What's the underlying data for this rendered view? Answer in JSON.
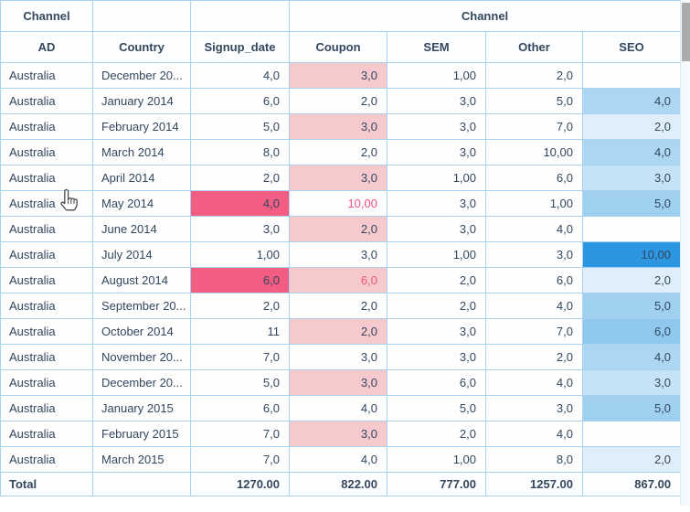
{
  "table": {
    "header_row1": [
      {
        "label": "Channel",
        "span": 1
      },
      {
        "label": "",
        "span": 1
      },
      {
        "label": "",
        "span": 1
      },
      {
        "label": "Channel",
        "span": 4
      }
    ],
    "columns": [
      "AD",
      "Country",
      "Signup_date",
      "Coupon",
      "SEM",
      "Other",
      "SEO"
    ],
    "rows": [
      {
        "ad": "Australia",
        "country": "December 20...",
        "signup": "4,0",
        "coupon": "3,0",
        "coupon_bg": "#F6C9CD",
        "sem": "1,00",
        "other": "2,0",
        "seo": ""
      },
      {
        "ad": "Australia",
        "country": "January 2014",
        "signup": "6,0",
        "coupon": "2,0",
        "sem": "3,0",
        "other": "5,0",
        "seo": "4,0",
        "seo_bg": "#ACD6F2"
      },
      {
        "ad": "Australia",
        "country": "February 2014",
        "signup": "5,0",
        "coupon": "3,0",
        "coupon_bg": "#F6C9CD",
        "sem": "3,0",
        "other": "7,0",
        "seo": "2,0",
        "seo_bg": "#DFEFFA"
      },
      {
        "ad": "Australia",
        "country": "March 2014",
        "signup": "8,0",
        "coupon": "2,0",
        "sem": "3,0",
        "other": "10,00",
        "seo": "4,0",
        "seo_bg": "#ACD6F2"
      },
      {
        "ad": "Australia",
        "country": "April 2014",
        "signup": "2,0",
        "coupon": "3,0",
        "coupon_bg": "#F6C9CD",
        "sem": "1,00",
        "other": "6,0",
        "seo": "3,0",
        "seo_bg": "#C6E2F7"
      },
      {
        "ad": "Australia",
        "country": "May 2014",
        "signup": "4,0",
        "signup_bg": "#F35C83",
        "coupon": "10,00",
        "coupon_color": "#F3527F",
        "sem": "3,0",
        "other": "1,00",
        "seo": "5,0",
        "seo_bg": "#A0D0F0"
      },
      {
        "ad": "Australia",
        "country": "June 2014",
        "signup": "3,0",
        "coupon": "2,0",
        "coupon_bg": "#F6C9CD",
        "sem": "3,0",
        "other": "4,0",
        "seo": ""
      },
      {
        "ad": "Australia",
        "country": "July 2014",
        "signup": "1,00",
        "coupon": "3,0",
        "sem": "1,00",
        "other": "3,0",
        "seo": "10,00",
        "seo_bg": "#2D96E0"
      },
      {
        "ad": "Australia",
        "country": "August 2014",
        "signup": "6,0",
        "signup_bg": "#F35C83",
        "coupon": "6,0",
        "coupon_bg": "#F6C9CD",
        "coupon_color": "#F3527F",
        "sem": "2,0",
        "other": "6,0",
        "seo": "2,0",
        "seo_bg": "#DFEFFA"
      },
      {
        "ad": "Australia",
        "country": "September 20...",
        "signup": "2,0",
        "coupon": "2,0",
        "sem": "2,0",
        "other": "4,0",
        "seo": "5,0",
        "seo_bg": "#A0D0F0"
      },
      {
        "ad": "Australia",
        "country": "October 2014",
        "signup": "11",
        "coupon": "2,0",
        "coupon_bg": "#F6C9CD",
        "sem": "3,0",
        "other": "7,0",
        "seo": "6,0",
        "seo_bg": "#8FC7ED"
      },
      {
        "ad": "Australia",
        "country": "November 20...",
        "signup": "7,0",
        "coupon": "3,0",
        "sem": "3,0",
        "other": "2,0",
        "seo": "4,0",
        "seo_bg": "#ACD6F2"
      },
      {
        "ad": "Australia",
        "country": "December 20...",
        "signup": "5,0",
        "coupon": "3,0",
        "coupon_bg": "#F6C9CD",
        "sem": "6,0",
        "other": "4,0",
        "seo": "3,0",
        "seo_bg": "#C6E2F7"
      },
      {
        "ad": "Australia",
        "country": "January 2015",
        "signup": "6,0",
        "coupon": "4,0",
        "sem": "5,0",
        "other": "3,0",
        "seo": "5,0",
        "seo_bg": "#A0D0F0"
      },
      {
        "ad": "Australia",
        "country": "February 2015",
        "signup": "7,0",
        "coupon": "3,0",
        "coupon_bg": "#F6C9CD",
        "sem": "2,0",
        "other": "4,0",
        "seo": ""
      },
      {
        "ad": "Australia",
        "country": "March 2015",
        "signup": "7,0",
        "coupon": "4,0",
        "sem": "1,00",
        "other": "8,0",
        "seo": "2,0",
        "seo_bg": "#DFEFFA"
      }
    ],
    "total": {
      "label": "Total",
      "signup": "1270.00",
      "coupon": "822.00",
      "sem": "777.00",
      "other": "1257.00",
      "seo": "867.00"
    }
  },
  "colors": {
    "border": "#A9D2F0",
    "text": "#33475E",
    "hot_pink_bg": "#F35C83",
    "light_pink_bg": "#F6C9CD",
    "pink_text": "#F3527F",
    "seo_strong_blue": "#2D96E0",
    "scrollbar_thumb": "#ABABAB",
    "scrollbar_track": "#F5FAFE"
  },
  "cursor": {
    "type": "hand-pointer"
  }
}
